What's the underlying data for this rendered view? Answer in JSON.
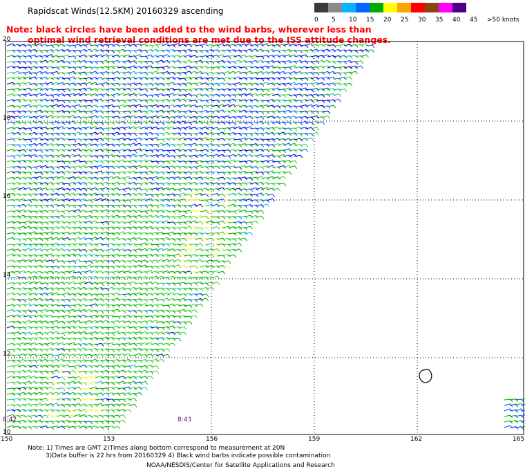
{
  "title": "Rapidscat Winds(12.5KM) 20160329 ascending",
  "note": {
    "line1": "Note: black circles have been added to the wind barbs, wherever less than",
    "line2": "optimal wind retrieval conditions are met due to the ISS attitude changes."
  },
  "legend": {
    "labels": [
      "0",
      "5",
      "10",
      "15",
      "20",
      "25",
      "30",
      "35",
      "40",
      "45",
      ">50 knots"
    ],
    "colors": [
      "#3a3a3a",
      "#8a8a8a",
      "#00b4ff",
      "#0064ff",
      "#00aa00",
      "#ffff00",
      "#ffa500",
      "#ff0000",
      "#8b4513",
      "#ff00ff",
      "#4b0082"
    ]
  },
  "map": {
    "lat_labels": [
      "20",
      "18",
      "16",
      "14",
      "12",
      "10"
    ],
    "lon_labels": [
      "150",
      "153",
      "156",
      "159",
      "162",
      "165"
    ],
    "time_labels": [
      "8:42",
      "8:43"
    ]
  },
  "footer": {
    "line1": "Note: 1) Times are GMT 2)Times along bottom correspond to measurement at 20N",
    "line2": "3)Data buffer is 22 hrs from 20160329 4) Black wind barbs indicate possible contamination",
    "line3": "NOAA/NESDIS/Center for Satellite Applications and Research"
  }
}
